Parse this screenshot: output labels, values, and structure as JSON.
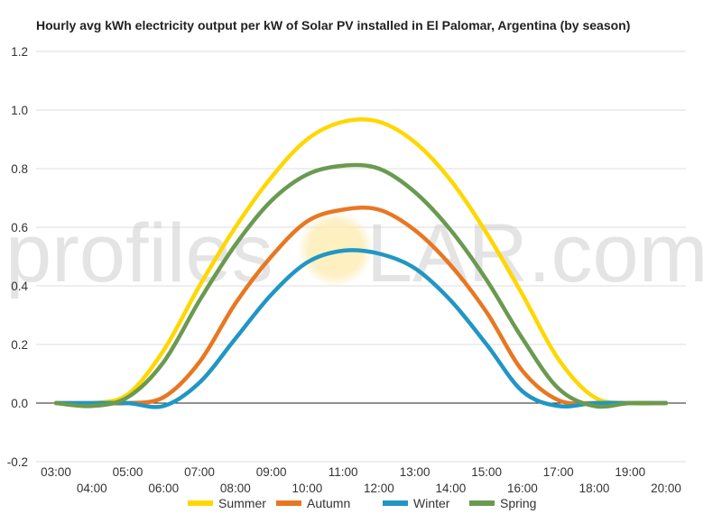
{
  "chart_data": {
    "type": "line",
    "title": "Hourly avg kWh electricity output per kW of Solar PV installed in El Palomar, Argentina (by season)",
    "xlabel": "",
    "ylabel": "",
    "ylim": [
      -0.2,
      1.2
    ],
    "yticks": [
      "-0.2",
      "0.0",
      "0.2",
      "0.4",
      "0.6",
      "0.8",
      "1.0",
      "1.2"
    ],
    "xlim": [
      3,
      20
    ],
    "x_tick_labels": [
      "03:00",
      "04:00",
      "05:00",
      "06:00",
      "07:00",
      "08:00",
      "09:00",
      "10:00",
      "11:00",
      "12:00",
      "13:00",
      "14:00",
      "15:00",
      "16:00",
      "17:00",
      "18:00",
      "19:00",
      "20:00"
    ],
    "x": [
      3,
      4,
      5,
      6,
      7,
      8,
      9,
      10,
      11,
      12,
      13,
      14,
      15,
      16,
      17,
      18,
      19,
      20
    ],
    "grid": true,
    "legend_position": "bottom",
    "series": [
      {
        "name": "Summer",
        "color": "#ffd700",
        "values": [
          0.0,
          0.0,
          0.03,
          0.18,
          0.4,
          0.6,
          0.77,
          0.9,
          0.96,
          0.96,
          0.89,
          0.76,
          0.58,
          0.37,
          0.15,
          0.02,
          0.0,
          0.0
        ]
      },
      {
        "name": "Autumn",
        "color": "#e87722",
        "values": [
          0.0,
          0.0,
          0.0,
          0.02,
          0.14,
          0.34,
          0.5,
          0.62,
          0.66,
          0.66,
          0.59,
          0.47,
          0.31,
          0.11,
          0.01,
          0.0,
          0.0,
          0.0
        ]
      },
      {
        "name": "Winter",
        "color": "#2196c4",
        "values": [
          0.0,
          0.0,
          0.0,
          -0.01,
          0.07,
          0.22,
          0.37,
          0.48,
          0.52,
          0.51,
          0.46,
          0.35,
          0.2,
          0.04,
          -0.01,
          0.0,
          0.0,
          0.0
        ]
      },
      {
        "name": "Spring",
        "color": "#6a9a50",
        "values": [
          0.0,
          -0.01,
          0.02,
          0.14,
          0.35,
          0.54,
          0.69,
          0.78,
          0.81,
          0.8,
          0.72,
          0.59,
          0.42,
          0.22,
          0.05,
          -0.01,
          0.0,
          0.0
        ]
      }
    ]
  },
  "watermark": {
    "text_left": "profilesO",
    "text_right": "LAR.com"
  }
}
